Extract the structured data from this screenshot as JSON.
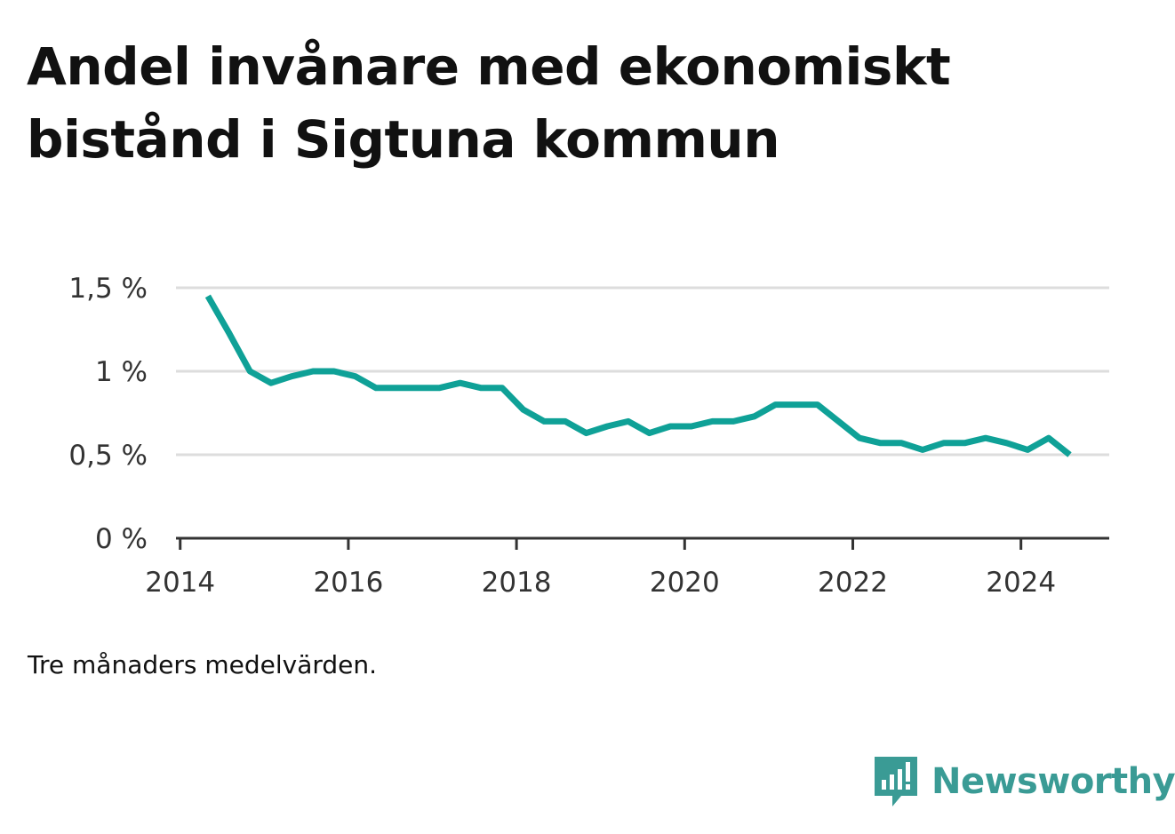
{
  "title": "Andel invånare med ekonomiskt bistånd i Sigtuna kommun",
  "note": "Tre månaders medelvärden.",
  "brand": {
    "name": "Newsworthy",
    "icon": "newsworthy-logo-icon",
    "color": "#3a9b95"
  },
  "colors": {
    "line": "#0fa197",
    "grid": "#dddddd",
    "axis": "#333333"
  },
  "chart_data": {
    "type": "line",
    "title": "Andel invånare med ekonomiskt bistånd i Sigtuna kommun",
    "xlabel": "",
    "ylabel": "",
    "xlim": [
      2013.95,
      2025.05
    ],
    "ylim": [
      0,
      1.5
    ],
    "grid": true,
    "y_ticks": [
      {
        "value": 0,
        "label": "0 %"
      },
      {
        "value": 0.5,
        "label": "0,5 %"
      },
      {
        "value": 1,
        "label": "1 %"
      },
      {
        "value": 1.5,
        "label": "1,5 %"
      }
    ],
    "x_ticks": [
      {
        "value": 2014,
        "label": "2014"
      },
      {
        "value": 2016,
        "label": "2016"
      },
      {
        "value": 2018,
        "label": "2018"
      },
      {
        "value": 2020,
        "label": "2020"
      },
      {
        "value": 2022,
        "label": "2022"
      },
      {
        "value": 2024,
        "label": "2024"
      }
    ],
    "series": [
      {
        "x": [
          2014.33,
          2014.58,
          2014.83,
          2015.08,
          2015.33,
          2015.58,
          2015.83,
          2016.08,
          2016.33,
          2016.58,
          2016.83,
          2017.08,
          2017.33,
          2017.58,
          2017.83,
          2018.08,
          2018.33,
          2018.58,
          2018.83,
          2019.08,
          2019.33,
          2019.58,
          2019.83,
          2020.08,
          2020.33,
          2020.58,
          2020.83,
          2021.08,
          2021.33,
          2021.58,
          2021.83,
          2022.08,
          2022.33,
          2022.58,
          2022.83,
          2023.08,
          2023.33,
          2023.58,
          2023.83,
          2024.08,
          2024.33,
          2024.58
        ],
        "values": [
          1.45,
          1.23,
          1.0,
          0.93,
          0.97,
          1.0,
          1.0,
          0.97,
          0.9,
          0.9,
          0.9,
          0.9,
          0.93,
          0.9,
          0.9,
          0.77,
          0.7,
          0.7,
          0.63,
          0.67,
          0.7,
          0.63,
          0.67,
          0.67,
          0.7,
          0.7,
          0.73,
          0.8,
          0.8,
          0.8,
          0.7,
          0.6,
          0.57,
          0.57,
          0.53,
          0.57,
          0.57,
          0.6,
          0.57,
          0.53,
          0.6,
          0.5
        ]
      }
    ]
  }
}
